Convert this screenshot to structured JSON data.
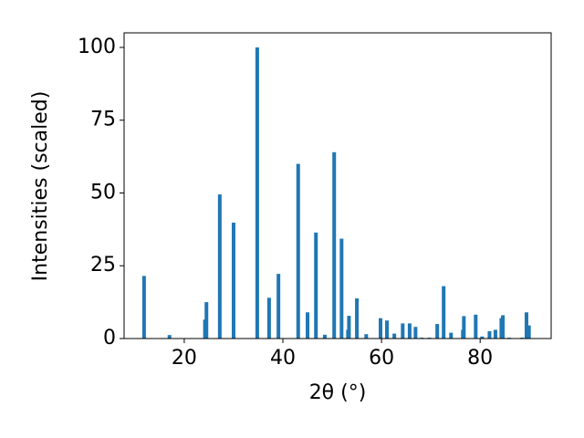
{
  "chart_data": {
    "type": "bar",
    "x": [
      11.85,
      17.0,
      24.2,
      24.5,
      27.2,
      30.0,
      34.8,
      37.2,
      39.1,
      43.1,
      45.0,
      46.7,
      48.5,
      50.4,
      51.9,
      53.2,
      53.4,
      55.0,
      56.9,
      59.8,
      61.1,
      62.6,
      64.3,
      65.7,
      66.9,
      68.2,
      69.7,
      71.3,
      72.6,
      74.1,
      76.5,
      76.7,
      79.1,
      80.4,
      81.9,
      83.1,
      84.3,
      84.6,
      85.9,
      88.5,
      89.4,
      89.9
    ],
    "values": [
      21.5,
      1.2,
      6.5,
      12.5,
      49.5,
      39.8,
      100,
      14,
      22.2,
      60,
      9,
      36.4,
      1.3,
      64,
      34.3,
      3,
      7.8,
      13.8,
      1.5,
      7,
      6.2,
      1.7,
      5.2,
      5.2,
      4,
      0.3,
      0.3,
      5,
      18,
      2,
      3,
      7.7,
      8.2,
      0.7,
      2.5,
      3,
      7,
      8,
      0.3,
      0.3,
      9,
      4.5
    ],
    "color": "#1f77b4",
    "xlabel": "2θ (°)",
    "ylabel": "Intensities (scaled)",
    "xlim": [
      7.8,
      94.4
    ],
    "ylim": [
      0,
      105
    ],
    "xticks": [
      20,
      40,
      60,
      80
    ],
    "yticks": [
      0,
      25,
      50,
      75,
      100
    ],
    "grid": false
  }
}
